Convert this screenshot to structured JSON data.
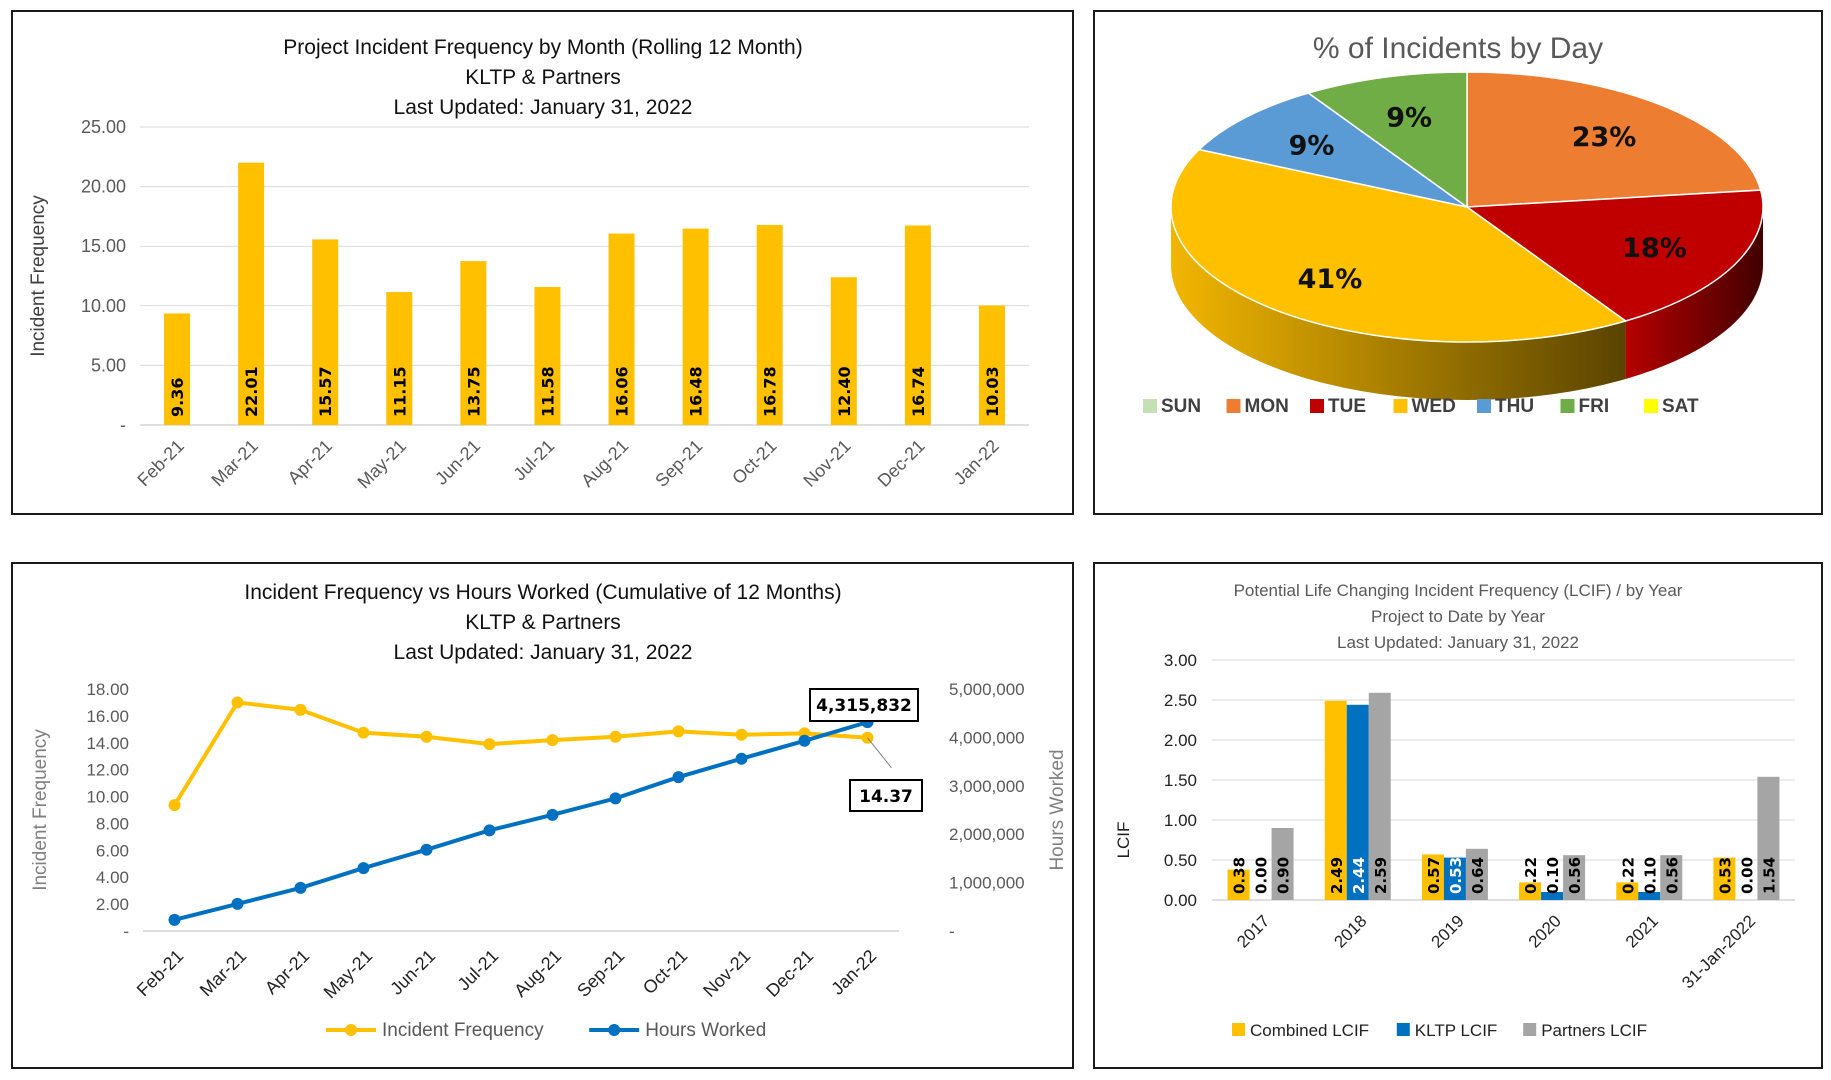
{
  "chart_data": [
    {
      "type": "bar",
      "title": [
        "Project Incident Frequency by Month (Rolling 12 Month)",
        "KLTP & Partners",
        "Last Updated:  January 31, 2022"
      ],
      "ylabel": "Incident Frequency",
      "ylim": [
        0,
        25
      ],
      "yticks": [
        "-",
        "5.00",
        "10.00",
        "15.00",
        "20.00",
        "25.00"
      ],
      "categories": [
        "Feb-21",
        "Mar-21",
        "Apr-21",
        "May-21",
        "Jun-21",
        "Jul-21",
        "Aug-21",
        "Sep-21",
        "Oct-21",
        "Nov-21",
        "Dec-21",
        "Jan-22"
      ],
      "values": [
        9.36,
        22.01,
        15.57,
        11.15,
        13.75,
        11.58,
        16.06,
        16.48,
        16.78,
        12.4,
        16.74,
        10.03
      ],
      "labels": [
        "9.36",
        "22.01",
        "15.57",
        "11.15",
        "13.75",
        "11.58",
        "16.06",
        "16.48",
        "16.78",
        "12.40",
        "16.74",
        "10.03"
      ],
      "color": "#FFC000",
      "grid": true
    },
    {
      "type": "pie",
      "title": "% of Incidents by Day",
      "slices": [
        {
          "name": "SUN",
          "value": 0,
          "label": "",
          "color": "#C5E0B4"
        },
        {
          "name": "MON",
          "value": 23,
          "label": "23%",
          "color": "#ED7D31"
        },
        {
          "name": "TUE",
          "value": 18,
          "label": "18%",
          "color": "#C00000"
        },
        {
          "name": "WED",
          "value": 41,
          "label": "41%",
          "color": "#FFC000"
        },
        {
          "name": "THU",
          "value": 9,
          "label": "9%",
          "color": "#5B9BD5"
        },
        {
          "name": "FRI",
          "value": 9,
          "label": "9%",
          "color": "#70AD47"
        },
        {
          "name": "SAT",
          "value": 0,
          "label": "",
          "color": "#FFFF00"
        }
      ],
      "legend_position": "bottom"
    },
    {
      "type": "line",
      "title": [
        "Incident Frequency vs Hours Worked (Cumulative  of 12 Months)",
        "KLTP & Partners",
        "Last Updated:  January 31, 2022"
      ],
      "ylabel": "Incident Frequency",
      "y2label": "Hours Worked",
      "ylim": [
        0,
        18
      ],
      "y2lim": [
        0,
        5000000
      ],
      "yticks": [
        "-",
        "2.00",
        "4.00",
        "6.00",
        "8.00",
        "10.00",
        "12.00",
        "14.00",
        "16.00",
        "18.00"
      ],
      "y2ticks": [
        "-",
        "1,000,000",
        "2,000,000",
        "3,000,000",
        "4,000,000",
        "5,000,000"
      ],
      "categories": [
        "Feb-21",
        "Mar-21",
        "Apr-21",
        "May-21",
        "Jun-21",
        "Jul-21",
        "Aug-21",
        "Sep-21",
        "Oct-21",
        "Nov-21",
        "Dec-21",
        "Jan-22"
      ],
      "series": [
        {
          "name": "Incident Frequency",
          "axis": "left",
          "color": "#FFC000",
          "values": [
            9.36,
            17.0,
            16.45,
            14.75,
            14.45,
            13.9,
            14.2,
            14.45,
            14.85,
            14.6,
            14.7,
            14.37
          ]
        },
        {
          "name": "Hours Worked",
          "axis": "right",
          "color": "#0070C0",
          "values": [
            230000,
            560000,
            890000,
            1300000,
            1680000,
            2080000,
            2400000,
            2740000,
            3180000,
            3560000,
            3930000,
            4315832
          ]
        }
      ],
      "annotations": [
        "4,315,832",
        "14.37"
      ],
      "legend_position": "bottom",
      "grid": false
    },
    {
      "type": "bar",
      "title": [
        "Potential  Life  Changing  Incident  Frequency  (LCIF) / by  Year",
        "Project  to  Date  by  Year",
        "Last Updated:  January 31, 2022"
      ],
      "ylabel": "LCIF",
      "ylim": [
        0,
        3
      ],
      "yticks": [
        "0.00",
        "0.50",
        "1.00",
        "1.50",
        "2.00",
        "2.50",
        "3.00"
      ],
      "categories": [
        "2017",
        "2018",
        "2019",
        "2020",
        "2021",
        "31-Jan-2022"
      ],
      "series": [
        {
          "name": "Combined LCIF",
          "color": "#FFC000",
          "values": [
            0.38,
            2.49,
            0.57,
            0.22,
            0.22,
            0.53
          ],
          "labels": [
            "0.38",
            "2.49",
            "0.57",
            "0.22",
            "0.22",
            "0.53"
          ]
        },
        {
          "name": "KLTP LCIF",
          "color": "#0070C0",
          "values": [
            0.0,
            2.44,
            0.53,
            0.1,
            0.1,
            0.0
          ],
          "labels": [
            "0.00",
            "2.44",
            "0.53",
            "0.10",
            "0.10",
            "0.00"
          ]
        },
        {
          "name": "Partners LCIF",
          "color": "#A5A5A5",
          "values": [
            0.9,
            2.59,
            0.64,
            0.56,
            0.56,
            1.54
          ],
          "labels": [
            "0.90",
            "2.59",
            "0.64",
            "0.56",
            "0.56",
            "1.54"
          ]
        }
      ],
      "legend_position": "bottom",
      "grid": true
    }
  ]
}
